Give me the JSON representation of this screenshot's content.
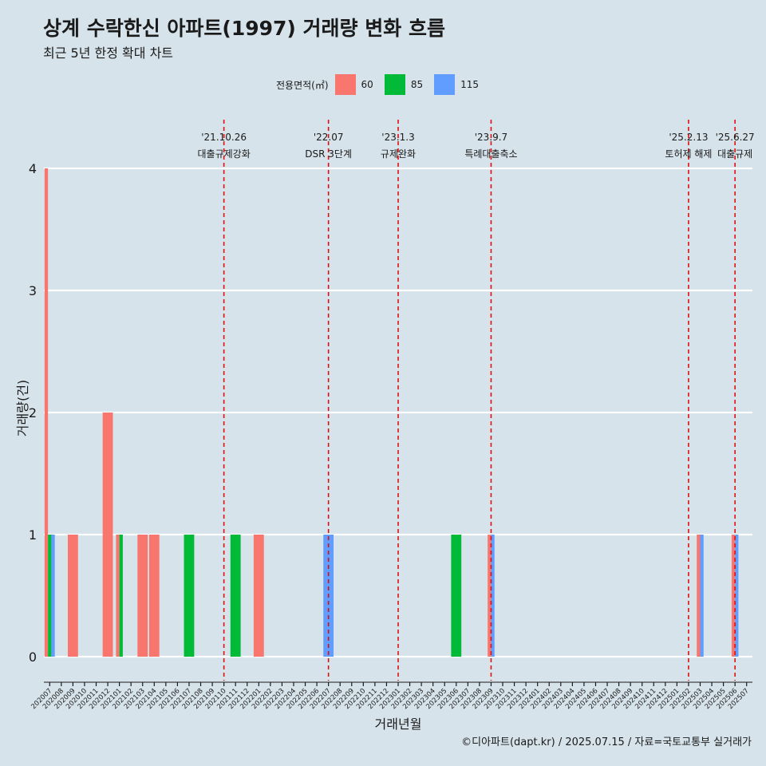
{
  "title": "상계 수락한신 아파트(1997) 거래량 변화 흐름",
  "subtitle": "최근 5년 한정 확대 차트",
  "caption": "©디아파트(dapt.kr) / 2025.07.15 / 자료=국토교통부 실거래가",
  "legend": {
    "title": "전용면적(㎡)",
    "items": [
      {
        "label": "60",
        "color": "#f8766d"
      },
      {
        "label": "85",
        "color": "#00ba38"
      },
      {
        "label": "115",
        "color": "#619cff"
      }
    ]
  },
  "chart_data": {
    "type": "bar",
    "xlabel": "거래년월",
    "ylabel": "거래량(건)",
    "ylim": [
      0,
      4
    ],
    "yticks": [
      "0",
      "1",
      "2",
      "3",
      "4"
    ],
    "grid": true,
    "legend_position": "top",
    "categories": [
      "202007",
      "202008",
      "202009",
      "202010",
      "202011",
      "202012",
      "202101",
      "202102",
      "202103",
      "202104",
      "202105",
      "202106",
      "202107",
      "202108",
      "202109",
      "202110",
      "202111",
      "202112",
      "202201",
      "202202",
      "202203",
      "202204",
      "202205",
      "202206",
      "202207",
      "202208",
      "202209",
      "202210",
      "202211",
      "202212",
      "202301",
      "202302",
      "202303",
      "202304",
      "202305",
      "202306",
      "202307",
      "202308",
      "202309",
      "202310",
      "202311",
      "202312",
      "202401",
      "202402",
      "202403",
      "202404",
      "202405",
      "202406",
      "202407",
      "202408",
      "202409",
      "202410",
      "202411",
      "202412",
      "202501",
      "202502",
      "202503",
      "202504",
      "202505",
      "202506",
      "202507"
    ],
    "series": [
      {
        "name": "60",
        "color": "#f8766d",
        "points": [
          [
            "202007",
            4
          ],
          [
            "202009",
            1
          ],
          [
            "202012",
            2
          ],
          [
            "202101",
            1
          ],
          [
            "202103",
            1
          ],
          [
            "202104",
            1
          ],
          [
            "202201",
            1
          ],
          [
            "202309",
            1
          ],
          [
            "202503",
            1
          ],
          [
            "202506",
            1
          ]
        ]
      },
      {
        "name": "85",
        "color": "#00ba38",
        "points": [
          [
            "202007",
            1
          ],
          [
            "202101",
            1
          ],
          [
            "202107",
            1
          ],
          [
            "202111",
            1
          ],
          [
            "202306",
            1
          ]
        ]
      },
      {
        "name": "115",
        "color": "#619cff",
        "points": [
          [
            "202007",
            1
          ],
          [
            "202207",
            1
          ],
          [
            "202309",
            1
          ],
          [
            "202503",
            1
          ],
          [
            "202506",
            1
          ]
        ]
      }
    ],
    "annotations": [
      {
        "date": "'21.10.26",
        "label": "대출규제강화",
        "at": "202110"
      },
      {
        "date": "'22.07",
        "label": "DSR 3단계",
        "at": "202207"
      },
      {
        "date": "'23.1.3",
        "label": "규제완화",
        "at": "202301"
      },
      {
        "date": "'23.9.7",
        "label": "특례대출축소",
        "at": "202309"
      },
      {
        "date": "'25.2.13",
        "label": "토허제 해제",
        "at": "202502"
      },
      {
        "date": "'25.6.27",
        "label": "대출규제",
        "at": "202506"
      }
    ]
  }
}
